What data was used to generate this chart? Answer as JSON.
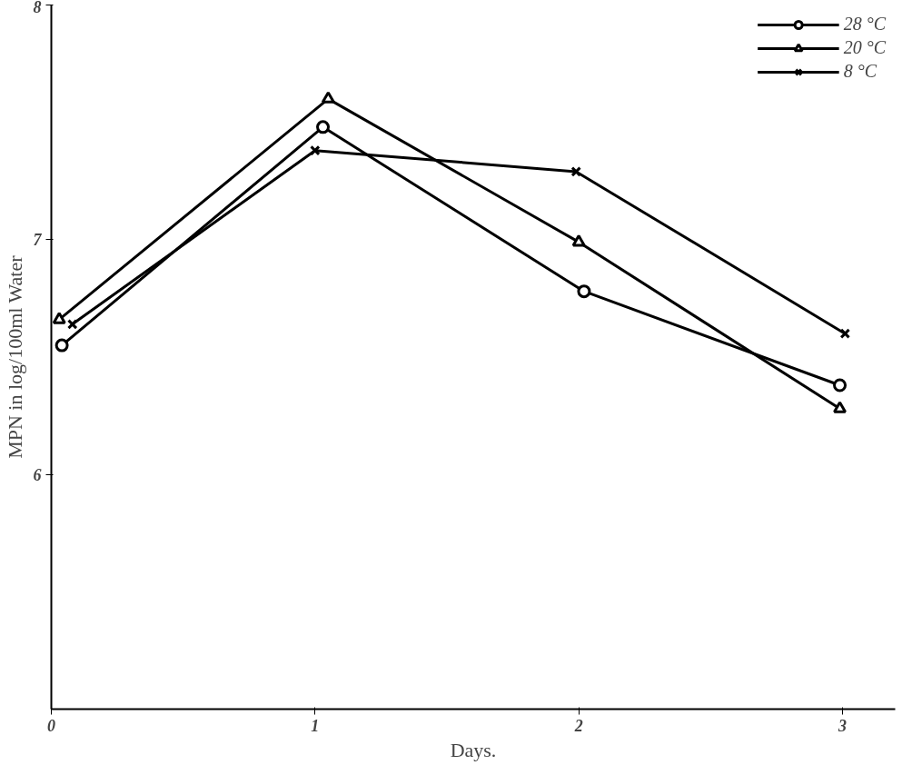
{
  "chart_data": {
    "type": "line",
    "xlabel": "Days.",
    "ylabel": "MPN in log/100ml Water",
    "xlim": [
      0,
      3.2
    ],
    "xticks": [
      0,
      1,
      2,
      3
    ],
    "ylim": [
      5,
      8
    ],
    "yticks": [
      6,
      7,
      8
    ],
    "series": [
      {
        "name": "28 °C",
        "color": "#000000",
        "marker": "circle",
        "x": [
          0.04,
          1.03,
          2.02,
          2.99
        ],
        "values": [
          6.55,
          7.48,
          6.78,
          6.38
        ]
      },
      {
        "name": "20 °C",
        "color": "#000000",
        "marker": "triangle",
        "x": [
          0.03,
          1.05,
          2.0,
          2.99
        ],
        "values": [
          6.66,
          7.6,
          6.99,
          6.28
        ]
      },
      {
        "name": "8 °C",
        "color": "#000000",
        "marker": "cross",
        "x": [
          0.08,
          1.0,
          1.99,
          3.01
        ],
        "values": [
          6.64,
          7.38,
          7.29,
          6.6
        ]
      }
    ],
    "legend": "top right",
    "grid": false,
    "line_style": "solid"
  }
}
